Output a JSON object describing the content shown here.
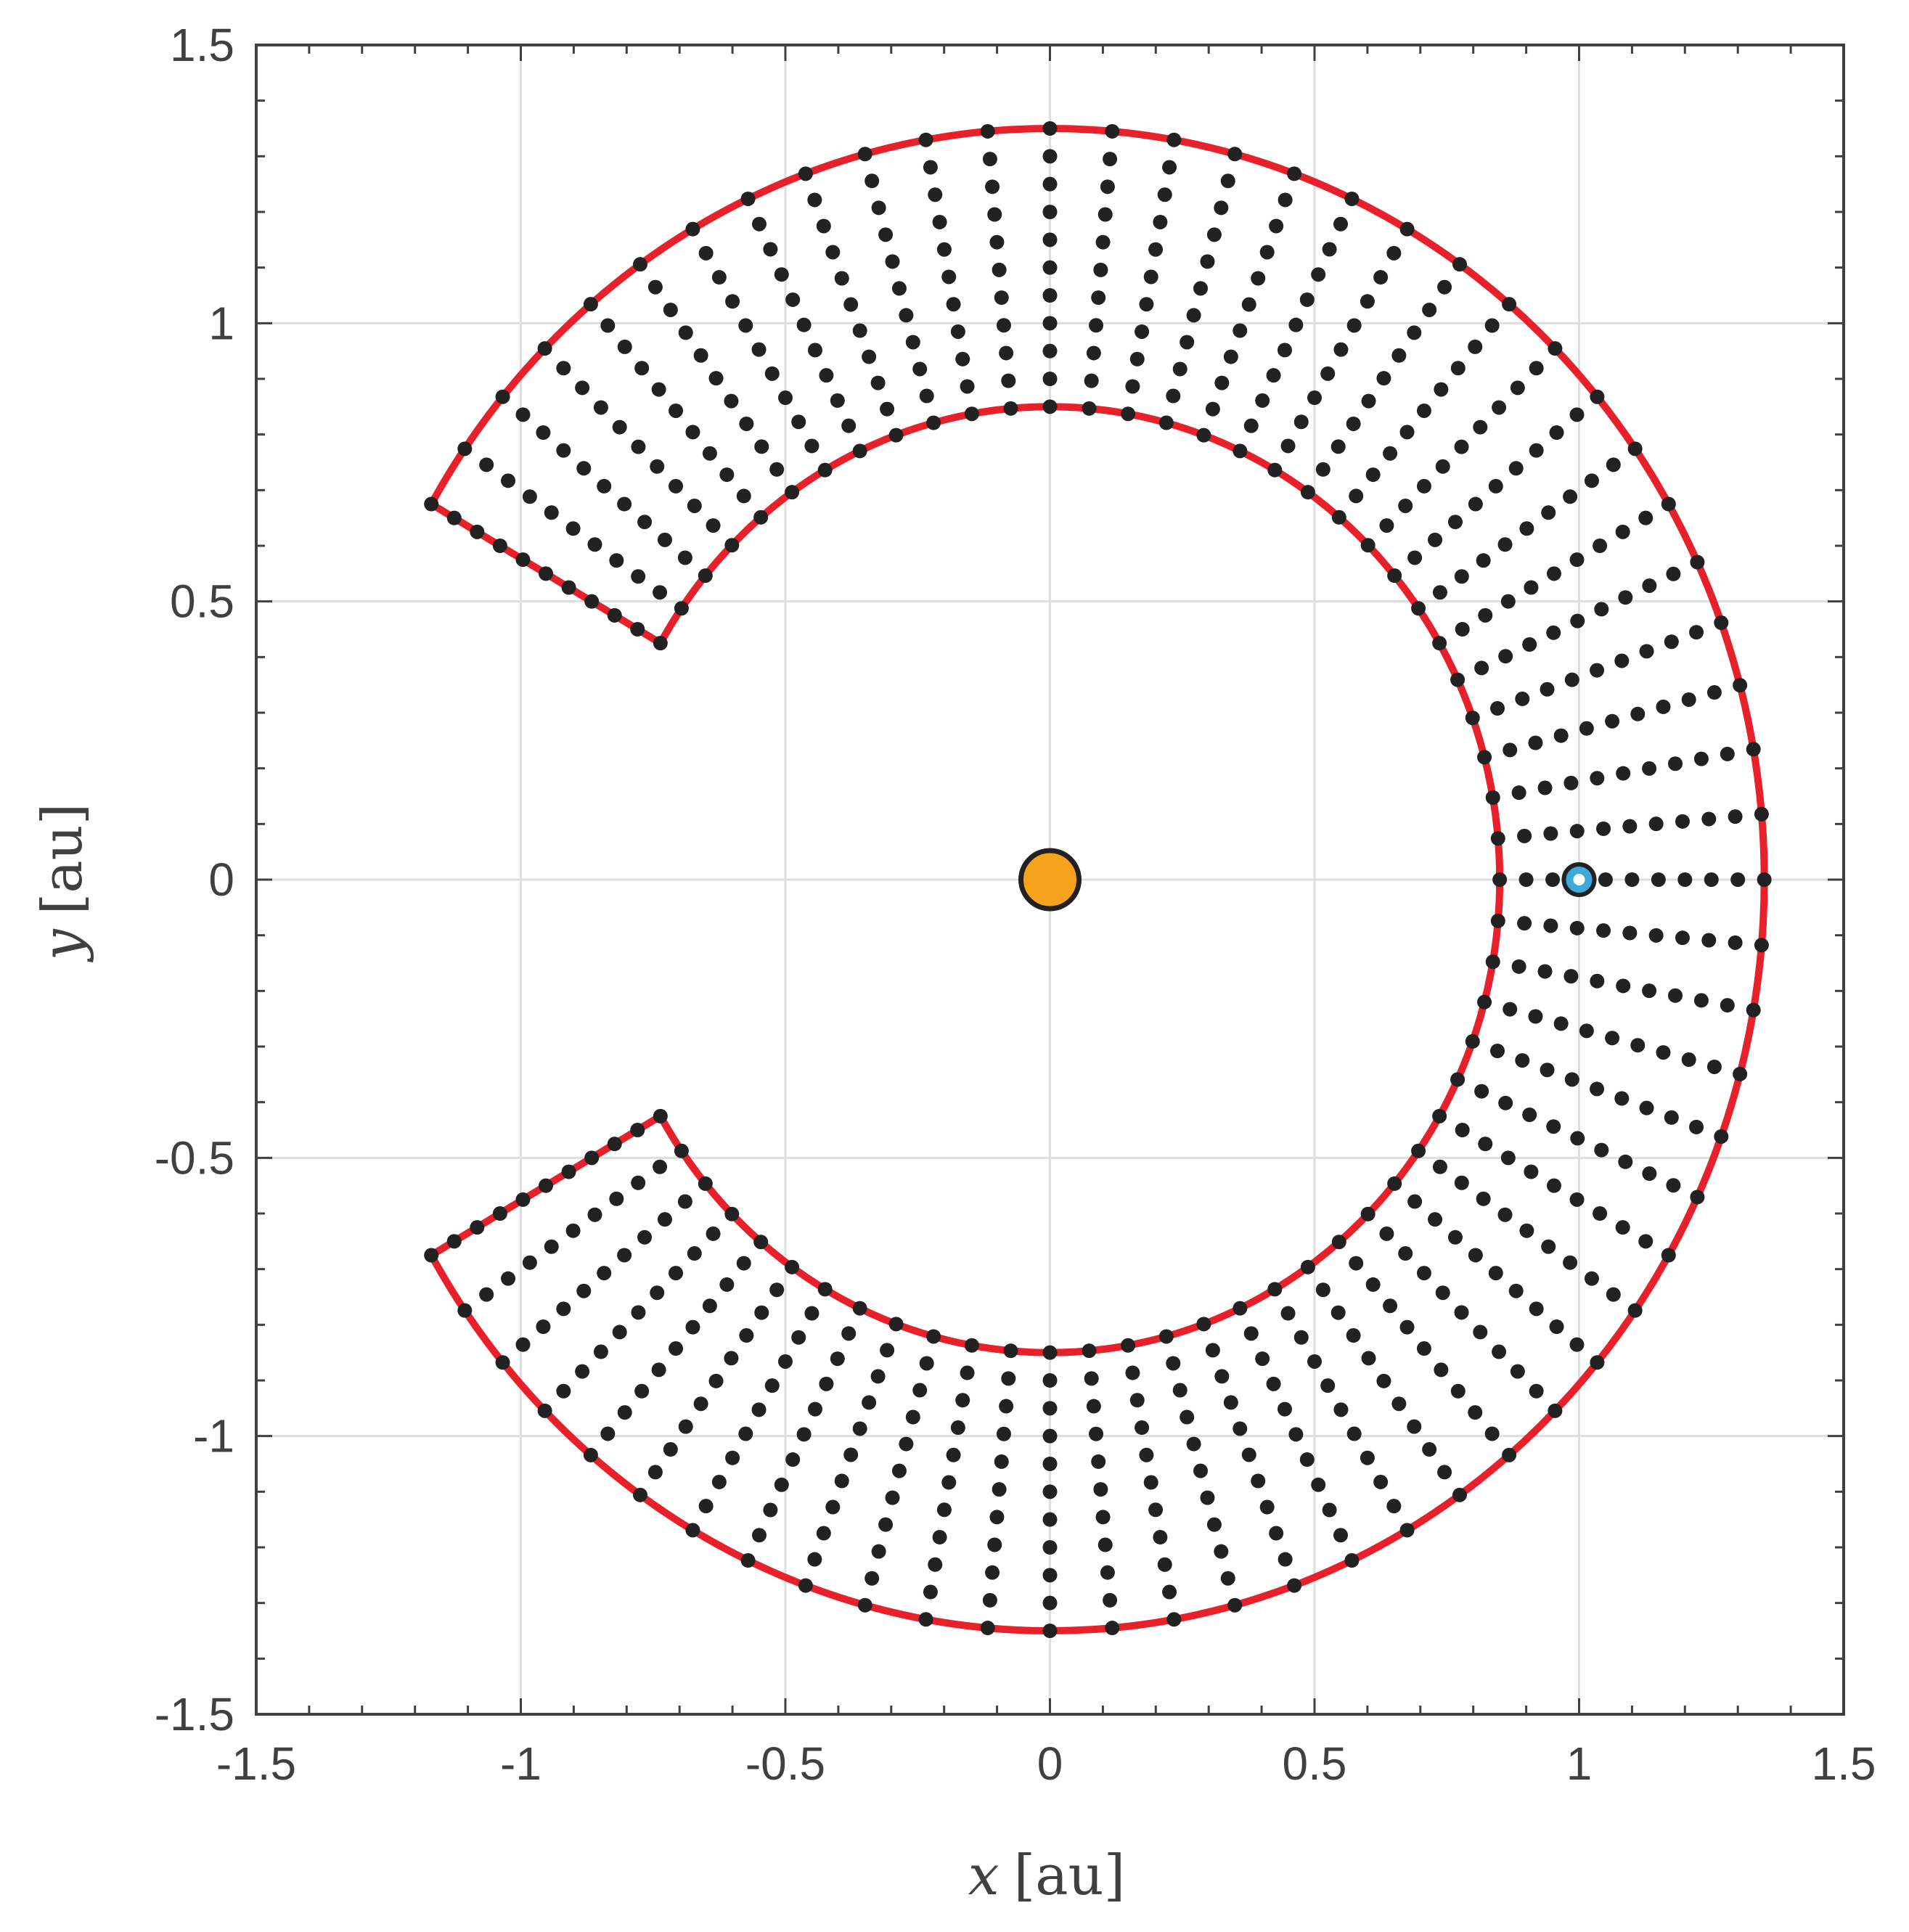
{
  "chart_data": {
    "type": "scatter",
    "xlabel_var": "x",
    "xlabel_unit": "[au]",
    "ylabel_var": "y",
    "ylabel_unit": "[au]",
    "xlim": [
      -1.5,
      1.5
    ],
    "ylim": [
      -1.5,
      1.5
    ],
    "xticks": [
      -1.5,
      -1,
      -0.5,
      0,
      0.5,
      1,
      1.5
    ],
    "yticks": [
      -1.5,
      -1,
      -0.5,
      0,
      0.5,
      1,
      1.5
    ],
    "xtick_labels": [
      "-1.5",
      "-1",
      "-0.5",
      "0",
      "0.5",
      "1",
      "1.5"
    ],
    "ytick_labels": [
      "-1.5",
      "-1",
      "-0.5",
      "0",
      "0.5",
      "1",
      "1.5"
    ],
    "grid": true,
    "region": {
      "shape": "annular sector",
      "inner_radius": 0.85,
      "outer_radius": 1.35,
      "angle_start_deg": -150,
      "angle_end_deg": 150,
      "color": "#e8202a"
    },
    "grid_points": {
      "radial_count": 11,
      "radius_min": 0.85,
      "radius_max": 1.35,
      "angular_count": 61,
      "angle_start_deg": -150,
      "angle_end_deg": 150,
      "color": "#222222"
    },
    "markers": [
      {
        "name": "Sun",
        "x": 0,
        "y": 0,
        "color": "#f5a31a"
      },
      {
        "name": "Earth",
        "x": 1,
        "y": 0,
        "color": "#3fa9dc"
      }
    ]
  }
}
